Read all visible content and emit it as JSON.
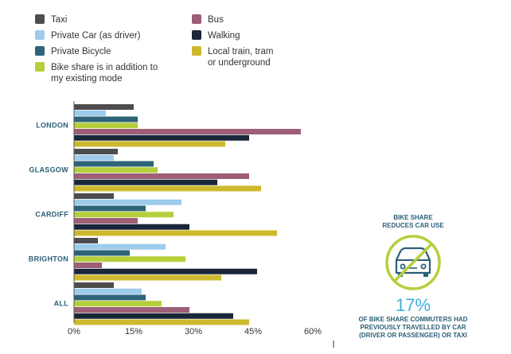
{
  "chart_data": {
    "type": "bar",
    "orientation": "horizontal",
    "categories": [
      "LONDON",
      "GLASGOW",
      "CARDIFF",
      "BRIGHTON",
      "ALL"
    ],
    "series": [
      {
        "name": "Taxi",
        "color": "#4d4d4f",
        "values": [
          15,
          11,
          10,
          6,
          10
        ]
      },
      {
        "name": "Private Car (as driver)",
        "color": "#9dcbec",
        "values": [
          8,
          10,
          27,
          23,
          17
        ]
      },
      {
        "name": "Private Bicycle",
        "color": "#2d6478",
        "values": [
          16,
          20,
          18,
          14,
          18
        ]
      },
      {
        "name": "Bike share is in addition to my existing mode",
        "color": "#b5cf3c",
        "values": [
          16,
          21,
          25,
          28,
          22
        ]
      },
      {
        "name": "Bus",
        "color": "#9e5e78",
        "values": [
          57,
          44,
          16,
          7,
          29
        ]
      },
      {
        "name": "Walking",
        "color": "#1a2639",
        "values": [
          44,
          36,
          29,
          46,
          40
        ]
      },
      {
        "name": "Local train, tram or underground",
        "color": "#cdb92e",
        "values": [
          38,
          47,
          51,
          37,
          44
        ]
      }
    ],
    "legend": {
      "placement": "top",
      "items": [
        {
          "lines": [
            "Taxi"
          ],
          "color": "#4d4d4f"
        },
        {
          "lines": [
            "Private Car (as driver)"
          ],
          "color": "#9dcbec"
        },
        {
          "lines": [
            "Private Bicycle"
          ],
          "color": "#2d6478"
        },
        {
          "lines": [
            "Bike share is in addition to",
            "my existing mode"
          ],
          "color": "#b5cf3c"
        },
        {
          "lines": [
            "Bus"
          ],
          "color": "#9e5e78"
        },
        {
          "lines": [
            "Walking"
          ],
          "color": "#1a2639"
        },
        {
          "lines": [
            "Local train, tram",
            "or underground"
          ],
          "color": "#cdb92e"
        }
      ]
    },
    "x_ticks": [
      0,
      15,
      30,
      45,
      60
    ],
    "x_tick_labels": [
      "0%",
      "15%",
      "30%",
      "45%",
      "60%"
    ],
    "xlim": [
      0,
      60
    ],
    "grid": false
  },
  "infographic": {
    "heading_lines": [
      "BIKE SHARE",
      "REDUCES CAR USE"
    ],
    "percent": "17%",
    "caption_lines": [
      "OF BIKE SHARE COMMUTERS HAD",
      "PREVIOUSLY TRAVELLED BY CAR",
      "(DRIVER OR PASSENGER) OR TAXI"
    ],
    "icon": "no-car-icon",
    "accent_color": "#b5cf3c",
    "text_color": "#2b5f77",
    "percent_color": "#3eaee0"
  }
}
